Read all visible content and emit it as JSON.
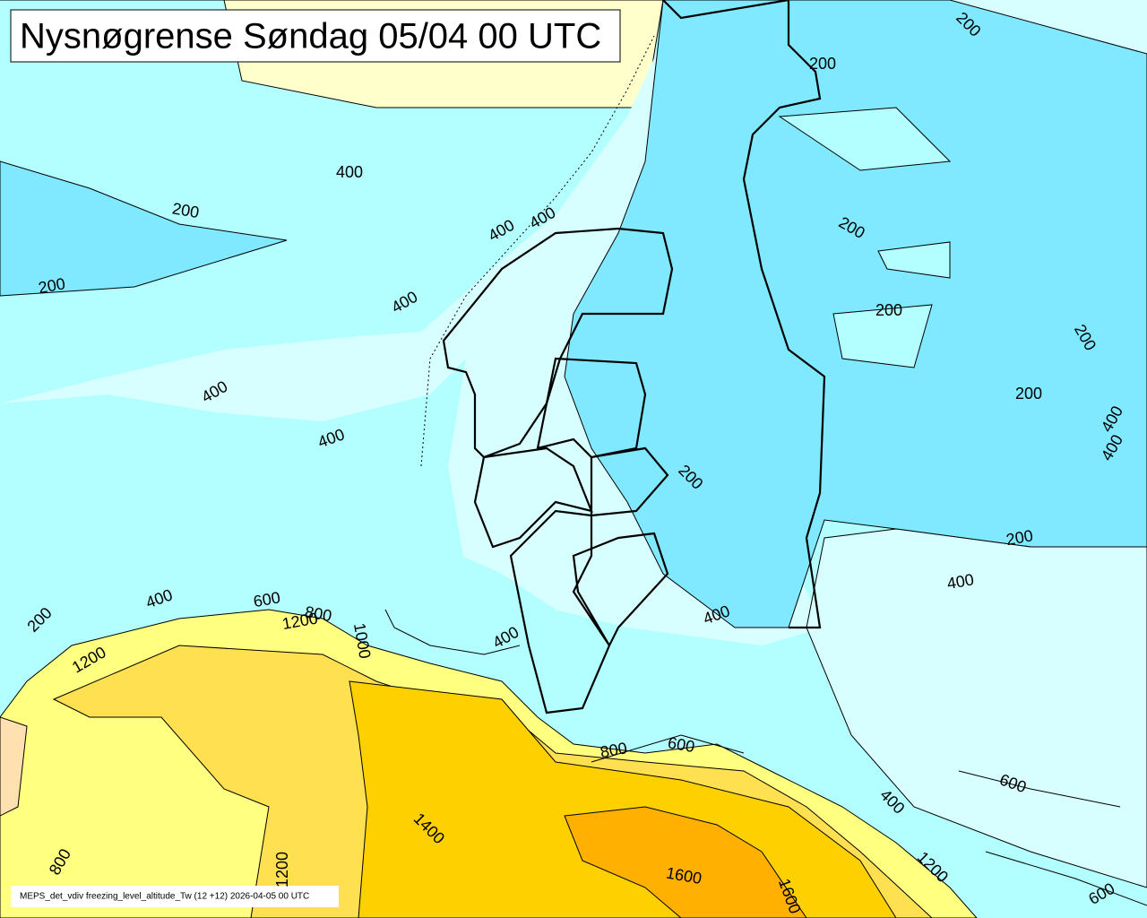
{
  "title": "Nysnøgrense Søndag 05/04 00 UTC",
  "caption": "MEPS_det_vdiv freezing_level_altitude_Tw (12 +12) 2026-04-05 00 UTC",
  "contour_labels": [
    "200",
    "200",
    "400",
    "200",
    "400",
    "400",
    "200",
    "400",
    "200",
    "200",
    "200",
    "400",
    "200",
    "400",
    "400",
    "400",
    "200",
    "200",
    "400",
    "400",
    "600",
    "800",
    "1200",
    "1000",
    "200",
    "1200",
    "400",
    "400",
    "800",
    "600",
    "600",
    "400",
    "1400",
    "1600",
    "1600",
    "800",
    "1200",
    "600",
    "1200"
  ]
}
